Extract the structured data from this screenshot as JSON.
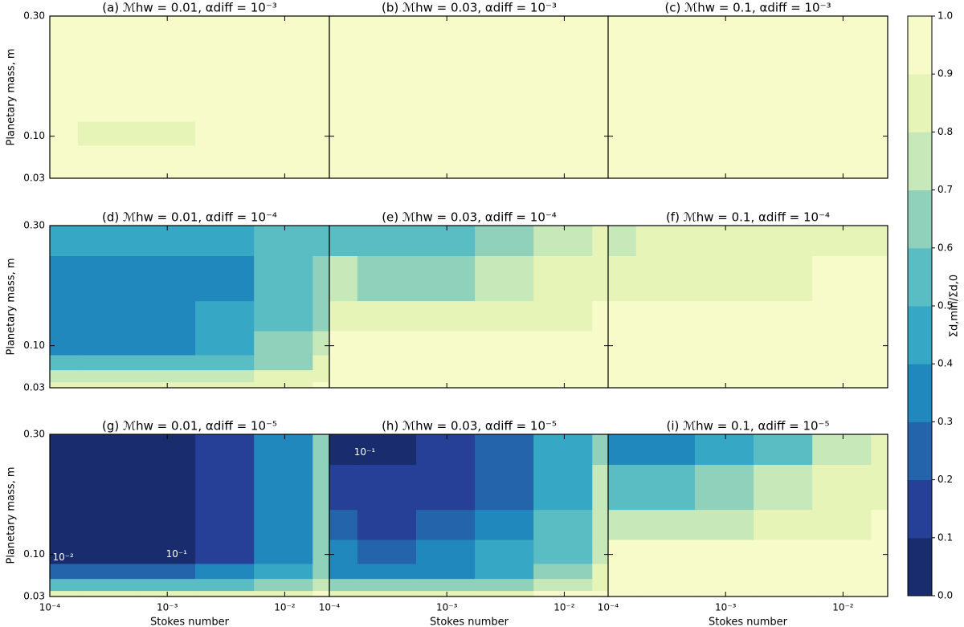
{
  "chart_data": {
    "type": "contour",
    "xlabel": "Stokes number",
    "ylabel": "Planetary mass, m",
    "colorbar_label": "Σd,min/Σd,0",
    "x": [
      0.0001,
      0.0003,
      0.001,
      0.003,
      0.01,
      0.03
    ],
    "y": [
      0.03,
      0.05,
      0.07,
      0.1,
      0.15,
      0.2,
      0.3
    ],
    "xlim": [
      0.0001,
      0.024
    ],
    "ylim": [
      0.03,
      0.3
    ],
    "xscale": "log",
    "xticks": [
      {
        "value": 0.0001,
        "label": "10⁻⁴"
      },
      {
        "value": 0.001,
        "label": "10⁻³"
      },
      {
        "value": 0.01,
        "label": "10⁻²"
      }
    ],
    "yticks": [
      {
        "value": 0.03,
        "label": "0.03"
      },
      {
        "value": 0.1,
        "label": "0.10"
      },
      {
        "value": 0.3,
        "label": "0.30"
      }
    ],
    "colors": [
      "#182c6e",
      "#263f97",
      "#2464ab",
      "#2188bd",
      "#36a7c5",
      "#5bbdc4",
      "#8fd1ba",
      "#c7e8b9",
      "#e6f4b8",
      "#f7fbca"
    ],
    "cbar_ticks": [
      {
        "value": 0,
        "label": "0.0"
      },
      {
        "value": 0.1,
        "label": "0.1"
      },
      {
        "value": 0.2,
        "label": "0.2"
      },
      {
        "value": 0.3,
        "label": "0.3"
      },
      {
        "value": 0.4,
        "label": "0.4"
      },
      {
        "value": 0.5,
        "label": "0.5"
      },
      {
        "value": 0.6,
        "label": "0.6"
      },
      {
        "value": 0.7,
        "label": "0.7"
      },
      {
        "value": 0.8,
        "label": "0.8"
      },
      {
        "value": 0.9,
        "label": "0.9"
      },
      {
        "value": 1,
        "label": "1.0"
      }
    ],
    "panels": [
      {
        "title": "(a) ℳhw = 0.01, αdiff = 10⁻³",
        "z": [
          [
            0.97,
            0.97,
            0.97,
            0.97,
            0.97,
            0.97
          ],
          [
            0.97,
            0.97,
            0.97,
            0.97,
            0.97,
            0.97
          ],
          [
            0.96,
            0.96,
            0.96,
            0.96,
            0.96,
            0.96
          ],
          [
            0.95,
            0.88,
            0.88,
            0.9,
            0.95,
            0.96
          ],
          [
            0.96,
            0.96,
            0.96,
            0.96,
            0.96,
            0.96
          ],
          [
            0.97,
            0.97,
            0.97,
            0.97,
            0.97,
            0.97
          ],
          [
            0.97,
            0.97,
            0.97,
            0.97,
            0.97,
            0.97
          ]
        ]
      },
      {
        "title": "(b) ℳhw = 0.03, αdiff = 10⁻³",
        "z": [
          [
            0.97,
            0.97,
            0.97,
            0.97,
            0.97,
            0.97
          ],
          [
            0.97,
            0.97,
            0.97,
            0.97,
            0.97,
            0.97
          ],
          [
            0.97,
            0.97,
            0.97,
            0.97,
            0.97,
            0.97
          ],
          [
            0.97,
            0.97,
            0.97,
            0.97,
            0.97,
            0.97
          ],
          [
            0.97,
            0.97,
            0.97,
            0.97,
            0.97,
            0.97
          ],
          [
            0.97,
            0.97,
            0.97,
            0.97,
            0.97,
            0.97
          ],
          [
            0.96,
            0.96,
            0.96,
            0.96,
            0.96,
            0.96
          ]
        ]
      },
      {
        "title": "(c) ℳhw = 0.1, αdiff = 10⁻³",
        "z": [
          [
            0.98,
            0.98,
            0.98,
            0.98,
            0.98,
            0.98
          ],
          [
            0.98,
            0.98,
            0.98,
            0.98,
            0.98,
            0.98
          ],
          [
            0.98,
            0.98,
            0.98,
            0.98,
            0.98,
            0.98
          ],
          [
            0.98,
            0.98,
            0.98,
            0.98,
            0.98,
            0.98
          ],
          [
            0.98,
            0.98,
            0.98,
            0.98,
            0.98,
            0.98
          ],
          [
            0.98,
            0.98,
            0.98,
            0.98,
            0.98,
            0.98
          ],
          [
            0.97,
            0.97,
            0.97,
            0.97,
            0.97,
            0.97
          ]
        ]
      },
      {
        "title": "(d) ℳhw = 0.01, αdiff = 10⁻⁴",
        "z": [
          [
            0.85,
            0.85,
            0.85,
            0.85,
            0.88,
            0.9
          ],
          [
            0.7,
            0.7,
            0.7,
            0.72,
            0.8,
            0.88
          ],
          [
            0.55,
            0.55,
            0.55,
            0.55,
            0.65,
            0.8
          ],
          [
            0.35,
            0.35,
            0.35,
            0.4,
            0.6,
            0.7
          ],
          [
            0.35,
            0.32,
            0.35,
            0.4,
            0.55,
            0.65
          ],
          [
            0.38,
            0.38,
            0.38,
            0.38,
            0.55,
            0.6
          ],
          [
            0.4,
            0.4,
            0.4,
            0.4,
            0.55,
            0.55
          ]
        ]
      },
      {
        "title": "(e) ℳhw = 0.03, αdiff = 10⁻⁴",
        "z": [
          [
            0.95,
            0.95,
            0.95,
            0.95,
            0.95,
            0.95
          ],
          [
            0.95,
            0.95,
            0.95,
            0.95,
            0.95,
            0.95
          ],
          [
            0.92,
            0.92,
            0.92,
            0.92,
            0.95,
            0.95
          ],
          [
            0.9,
            0.9,
            0.9,
            0.92,
            0.95,
            0.95
          ],
          [
            0.8,
            0.8,
            0.8,
            0.82,
            0.88,
            0.9
          ],
          [
            0.7,
            0.68,
            0.68,
            0.72,
            0.8,
            0.85
          ],
          [
            0.55,
            0.55,
            0.55,
            0.6,
            0.75,
            0.8
          ]
        ]
      },
      {
        "title": "(f) ℳhw = 0.1, αdiff = 10⁻⁴",
        "z": [
          [
            0.95,
            0.95,
            0.95,
            0.95,
            0.95,
            0.95
          ],
          [
            0.95,
            0.95,
            0.95,
            0.95,
            0.95,
            0.95
          ],
          [
            0.95,
            0.95,
            0.95,
            0.95,
            0.95,
            0.95
          ],
          [
            0.95,
            0.95,
            0.95,
            0.95,
            0.95,
            0.95
          ],
          [
            0.9,
            0.9,
            0.9,
            0.9,
            0.92,
            0.92
          ],
          [
            0.85,
            0.85,
            0.85,
            0.88,
            0.9,
            0.9
          ],
          [
            0.75,
            0.8,
            0.8,
            0.82,
            0.85,
            0.88
          ]
        ]
      },
      {
        "title": "(g) ℳhw = 0.01, αdiff = 10⁻⁵",
        "z": [
          [
            0.8,
            0.8,
            0.8,
            0.82,
            0.85,
            0.9
          ],
          [
            0.5,
            0.5,
            0.5,
            0.5,
            0.6,
            0.75
          ],
          [
            0.25,
            0.25,
            0.25,
            0.3,
            0.45,
            0.65
          ],
          [
            0.08,
            0.08,
            0.08,
            0.12,
            0.35,
            0.6
          ],
          [
            0.05,
            0.05,
            0.05,
            0.15,
            0.35,
            0.6
          ],
          [
            0.05,
            0.05,
            0.05,
            0.15,
            0.35,
            0.62
          ],
          [
            0.05,
            0.05,
            0.05,
            0.15,
            0.35,
            0.65
          ]
        ],
        "contour_labels": [
          {
            "text": "10⁻²",
            "x": 0.00013,
            "y": 0.095
          },
          {
            "text": "10⁻¹",
            "x": 0.0012,
            "y": 0.1
          }
        ]
      },
      {
        "title": "(h) ℳhw = 0.03, αdiff = 10⁻⁵",
        "z": [
          [
            0.85,
            0.85,
            0.85,
            0.88,
            0.9,
            0.92
          ],
          [
            0.6,
            0.6,
            0.6,
            0.65,
            0.75,
            0.85
          ],
          [
            0.35,
            0.35,
            0.35,
            0.45,
            0.6,
            0.8
          ],
          [
            0.3,
            0.28,
            0.3,
            0.4,
            0.55,
            0.75
          ],
          [
            0.2,
            0.18,
            0.2,
            0.35,
            0.5,
            0.72
          ],
          [
            0.12,
            0.1,
            0.12,
            0.25,
            0.45,
            0.7
          ],
          [
            0.05,
            0.05,
            0.1,
            0.2,
            0.4,
            0.65
          ]
        ],
        "contour_labels": [
          {
            "text": "10⁻¹",
            "x": 0.0002,
            "y": 0.27
          }
        ]
      },
      {
        "title": "(i) ℳhw = 0.1, αdiff = 10⁻⁵",
        "z": [
          [
            0.95,
            0.95,
            0.95,
            0.95,
            0.95,
            0.95
          ],
          [
            0.95,
            0.95,
            0.95,
            0.95,
            0.95,
            0.95
          ],
          [
            0.95,
            0.95,
            0.95,
            0.95,
            0.95,
            0.95
          ],
          [
            0.92,
            0.92,
            0.9,
            0.9,
            0.93,
            0.95
          ],
          [
            0.75,
            0.75,
            0.78,
            0.85,
            0.88,
            0.9
          ],
          [
            0.5,
            0.55,
            0.6,
            0.7,
            0.82,
            0.88
          ],
          [
            0.3,
            0.35,
            0.4,
            0.55,
            0.75,
            0.85
          ]
        ]
      }
    ]
  }
}
